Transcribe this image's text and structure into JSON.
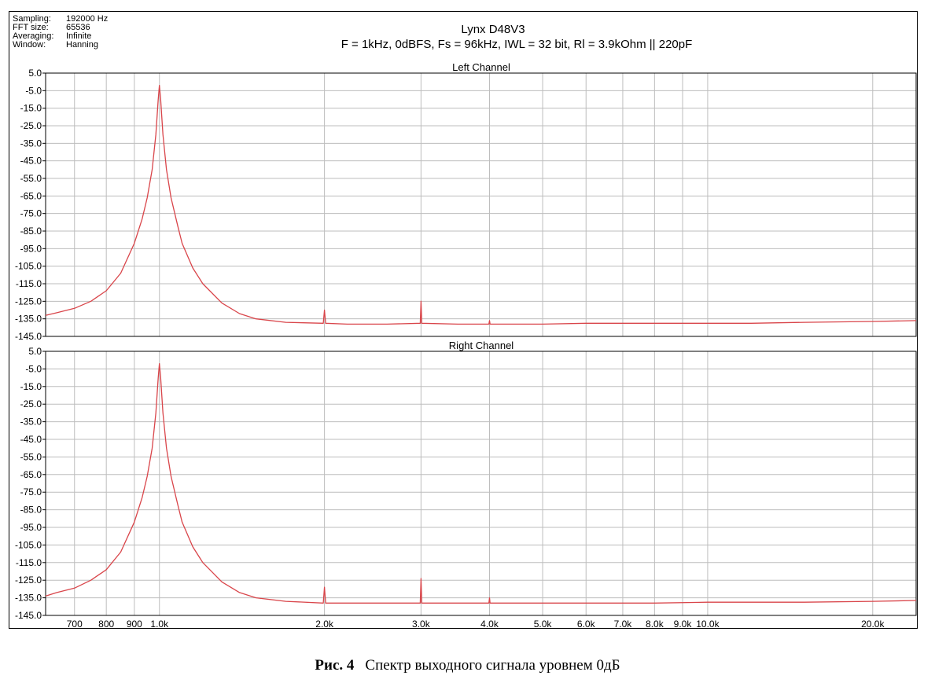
{
  "info": {
    "lines": [
      {
        "key": "Sampling:",
        "value": "192000 Hz"
      },
      {
        "key": "FFT size:",
        "value": "65536"
      },
      {
        "key": "Averaging:",
        "value": "Infinite"
      },
      {
        "key": "Window:",
        "value": "Hanning"
      }
    ]
  },
  "caption": {
    "label": "Рис. 4",
    "text": "Спектр выходного сигнала уровнем 0дБ"
  },
  "colors": {
    "trace": "#d9454a",
    "grid": "#bdbdbd"
  },
  "chart_data": {
    "type": "line",
    "title": "Lynx D48V3",
    "subtitle": "F = 1kHz, 0dBFS, Fs = 96kHz, IWL = 32 bit, Rl = 3.9kOhm || 220pF",
    "x_scale": "log",
    "xlim": [
      620,
      24000
    ],
    "ylim": [
      -145,
      5
    ],
    "x_ticks": [
      {
        "value": 700,
        "label": "700"
      },
      {
        "value": 800,
        "label": "800"
      },
      {
        "value": 900,
        "label": "900"
      },
      {
        "value": 1000,
        "label": "1.0k"
      },
      {
        "value": 2000,
        "label": "2.0k"
      },
      {
        "value": 3000,
        "label": "3.0k"
      },
      {
        "value": 4000,
        "label": "4.0k"
      },
      {
        "value": 5000,
        "label": "5.0k"
      },
      {
        "value": 6000,
        "label": "6.0k"
      },
      {
        "value": 7000,
        "label": "7.0k"
      },
      {
        "value": 8000,
        "label": "8.0k"
      },
      {
        "value": 9000,
        "label": "9.0k"
      },
      {
        "value": 10000,
        "label": "10.0k"
      },
      {
        "value": 20000,
        "label": "20.0k"
      }
    ],
    "y_ticks": [
      "5.0",
      "-5.0",
      "-15.0",
      "-25.0",
      "-35.0",
      "-45.0",
      "-55.0",
      "-65.0",
      "-75.0",
      "-85.0",
      "-95.0",
      "-105.0",
      "-115.0",
      "-125.0",
      "-135.0",
      "-145.0"
    ],
    "panels": [
      {
        "name": "Left Channel",
        "series": [
          {
            "x": [
              620,
              650,
              700,
              750,
              800,
              850,
              900,
              930,
              950,
              970,
              985,
              995,
              1000,
              1005,
              1015,
              1030,
              1050,
              1080,
              1100,
              1150,
              1200,
              1300,
              1400,
              1500,
              1700,
              1990,
              2000,
              2010,
              2200,
              2600,
              2990,
              3000,
              3010,
              3500,
              3990,
              4000,
              4010,
              5000,
              6000,
              8000,
              10000,
              12000,
              15000,
              20000,
              24000
            ],
            "y": [
              -133,
              -131.5,
              -129,
              -125,
              -119,
              -109,
              -92,
              -78,
              -66,
              -50,
              -30,
              -10,
              -2,
              -10,
              -30,
              -50,
              -66,
              -82,
              -92,
              -106,
              -115,
              -126,
              -132,
              -135,
              -137,
              -137.5,
              -130,
              -137.5,
              -138,
              -138,
              -137.5,
              -125,
              -137.5,
              -138,
              -138,
              -136,
              -138,
              -138,
              -137.5,
              -137.5,
              -137.5,
              -137.5,
              -137,
              -136.5,
              -136
            ]
          }
        ]
      },
      {
        "name": "Right Channel",
        "series": [
          {
            "x": [
              620,
              650,
              700,
              750,
              800,
              850,
              900,
              930,
              950,
              970,
              985,
              995,
              1000,
              1005,
              1015,
              1030,
              1050,
              1080,
              1100,
              1150,
              1200,
              1300,
              1400,
              1500,
              1700,
              1990,
              2000,
              2010,
              2200,
              2600,
              2990,
              3000,
              3010,
              3500,
              3990,
              4000,
              4010,
              5000,
              6000,
              8000,
              10000,
              12000,
              15000,
              20000,
              24000
            ],
            "y": [
              -134,
              -132,
              -129.5,
              -125,
              -119,
              -109,
              -92,
              -78,
              -66,
              -50,
              -30,
              -10,
              -2,
              -10,
              -30,
              -50,
              -66,
              -82,
              -92,
              -106,
              -115,
              -126,
              -132,
              -135,
              -137,
              -138,
              -129,
              -138,
              -138,
              -138,
              -138,
              -124,
              -138,
              -138,
              -138,
              -135,
              -138,
              -138,
              -138,
              -138,
              -137.5,
              -137.5,
              -137.5,
              -137,
              -136.5
            ]
          }
        ]
      }
    ]
  }
}
